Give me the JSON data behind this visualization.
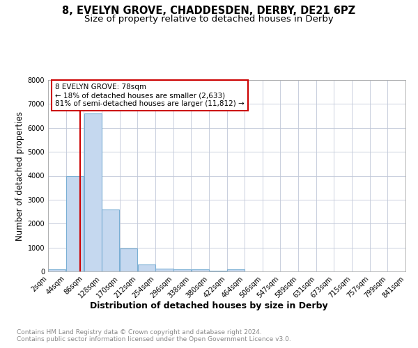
{
  "title1": "8, EVELYN GROVE, CHADDESDEN, DERBY, DE21 6PZ",
  "title2": "Size of property relative to detached houses in Derby",
  "xlabel": "Distribution of detached houses by size in Derby",
  "ylabel": "Number of detached properties",
  "footer": "Contains HM Land Registry data © Crown copyright and database right 2024.\nContains public sector information licensed under the Open Government Licence v3.0.",
  "bin_edges": [
    2,
    44,
    86,
    128,
    170,
    212,
    254,
    296,
    338,
    380,
    422,
    464,
    506,
    547,
    589,
    631,
    673,
    715,
    757,
    799,
    841
  ],
  "bar_heights": [
    100,
    4000,
    6600,
    2600,
    950,
    300,
    120,
    100,
    80,
    30,
    80,
    0,
    0,
    0,
    0,
    0,
    0,
    0,
    0,
    0
  ],
  "bar_color": "#c5d8ef",
  "bar_edgecolor": "#7aafd4",
  "bar_linewidth": 0.8,
  "subject_size": 78,
  "vline_color": "#cc0000",
  "annotation_line1": "8 EVELYN GROVE: 78sqm",
  "annotation_line2": "← 18% of detached houses are smaller (2,633)",
  "annotation_line3": "81% of semi-detached houses are larger (11,812) →",
  "annotation_box_color": "#cc0000",
  "ylim": [
    0,
    8000
  ],
  "yticks": [
    0,
    1000,
    2000,
    3000,
    4000,
    5000,
    6000,
    7000,
    8000
  ],
  "tick_labels": [
    "2sqm",
    "44sqm",
    "86sqm",
    "128sqm",
    "170sqm",
    "212sqm",
    "254sqm",
    "296sqm",
    "338sqm",
    "380sqm",
    "422sqm",
    "464sqm",
    "506sqm",
    "547sqm",
    "589sqm",
    "631sqm",
    "673sqm",
    "715sqm",
    "757sqm",
    "799sqm",
    "841sqm"
  ],
  "background_color": "#ffffff",
  "grid_color": "#c0c8d8",
  "title_fontsize": 10.5,
  "subtitle_fontsize": 9.5,
  "xlabel_fontsize": 9,
  "ylabel_fontsize": 8.5,
  "tick_fontsize": 7,
  "ann_fontsize": 7.5,
  "footer_fontsize": 6.5,
  "footer_color": "#888888"
}
